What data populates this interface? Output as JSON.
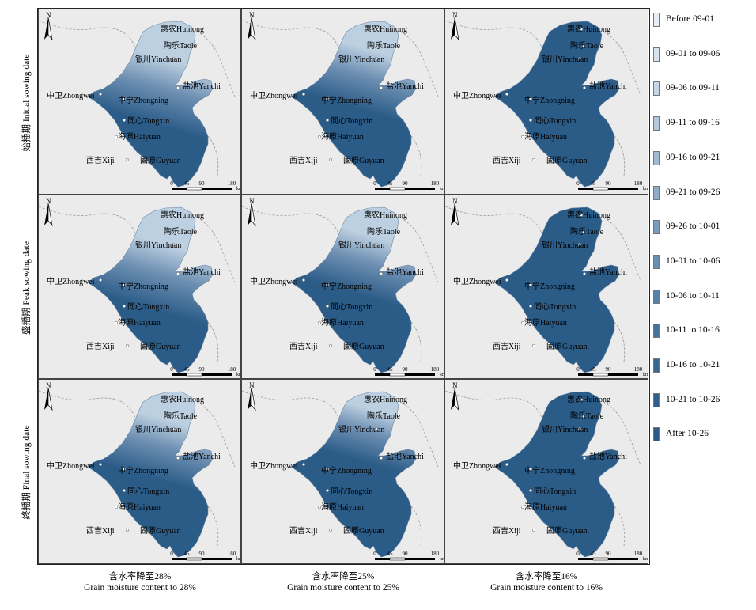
{
  "row_labels": [
    "始播期 Initial sowing date",
    "盛播期 Peak sowing date",
    "终播期 Final sowing date"
  ],
  "column_labels": [
    {
      "zh": "含水率降至28%",
      "en": "Grain moisture content to 28%"
    },
    {
      "zh": "含水率降至25%",
      "en": "Grain moisture content to 25%"
    },
    {
      "zh": "含水率降至16%",
      "en": "Grain moisture content to 16%"
    }
  ],
  "north_label": "N",
  "scale_bar": {
    "ticks": [
      "0",
      "45",
      "90",
      "180"
    ],
    "unit": "km"
  },
  "cities": [
    {
      "name": "惠农Huinong"
    },
    {
      "name": "陶乐Taole"
    },
    {
      "name": "银川Yinchuan"
    },
    {
      "name": "盐池Yanchi"
    },
    {
      "name": "中卫Zhongwei"
    },
    {
      "name": "中宁Zhongning"
    },
    {
      "name": "同心Tongxin"
    },
    {
      "name": "海原Haiyuan"
    },
    {
      "name": "西吉Xiji"
    },
    {
      "name": "固原Guyuan"
    }
  ],
  "legend": [
    {
      "label": "Before 09-01",
      "color": "#e8eef5"
    },
    {
      "label": "09-01 to 09-06",
      "color": "#d6e2ee"
    },
    {
      "label": "09-06 to 09-11",
      "color": "#c5d6e6"
    },
    {
      "label": "09-11 to 09-16",
      "color": "#b2c8dc"
    },
    {
      "label": "09-16 to 09-21",
      "color": "#a0bad2"
    },
    {
      "label": "09-21 to 09-26",
      "color": "#8eacc8"
    },
    {
      "label": "09-26 to 10-01",
      "color": "#7b9dbd"
    },
    {
      "label": "10-01 to 10-06",
      "color": "#698eb2"
    },
    {
      "label": "10-06 to 10-11",
      "color": "#5780a7"
    },
    {
      "label": "10-11 to 10-16",
      "color": "#46729c"
    },
    {
      "label": "10-16 to 10-21",
      "color": "#3a6892"
    },
    {
      "label": "10-21 to 10-26",
      "color": "#2f5f8a"
    },
    {
      "label": "After 10-26",
      "color": "#2a5a85"
    }
  ],
  "colors": {
    "dark_fill": "#2b5c88",
    "light_fill": "#bdd0e1",
    "panel_background": "#ebebeb",
    "boundary_line": "#9a9a9a"
  },
  "map_states": [
    [
      "gradient-large",
      "gradient-medium",
      "uniform-dark"
    ],
    [
      "gradient-large",
      "gradient-medium",
      "uniform-dark"
    ],
    [
      "gradient-medium",
      "gradient-small",
      "uniform-dark"
    ]
  ]
}
